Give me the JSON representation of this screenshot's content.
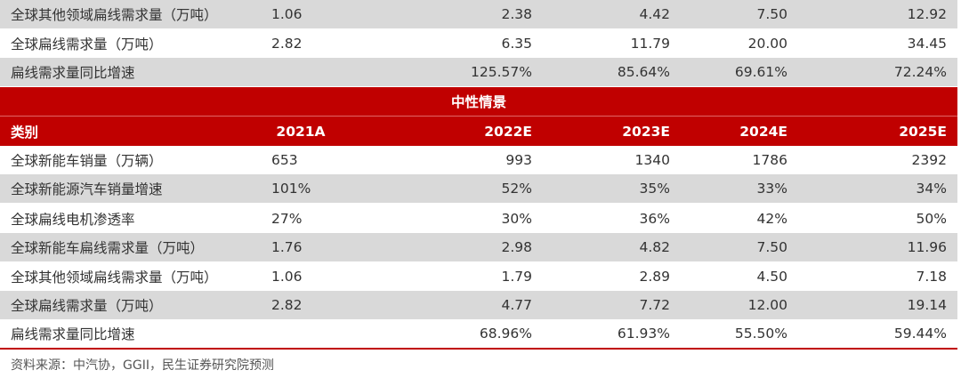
{
  "top_rows": [
    {
      "label": "全球其他领域扁线需求量（万吨）",
      "v2021": "1.06",
      "v2022": "2.38",
      "v2023": "4.42",
      "v2024": "7.50",
      "v2025": "12.92"
    },
    {
      "label": "全球扁线需求量（万吨）",
      "v2021": "2.82",
      "v2022": "6.35",
      "v2023": "11.79",
      "v2024": "20.00",
      "v2025": "34.45"
    },
    {
      "label": "扁线需求量同比增速",
      "v2021": "",
      "v2022": "125.57%",
      "v2023": "85.64%",
      "v2024": "69.61%",
      "v2025": "72.24%"
    }
  ],
  "scenario_title": "中性情景",
  "header": {
    "category": "类别",
    "y2021": "2021A",
    "y2022": "2022E",
    "y2023": "2023E",
    "y2024": "2024E",
    "y2025": "2025E"
  },
  "rows": [
    {
      "label": "全球新能车销量（万辆）",
      "v2021": "653",
      "v2022": "993",
      "v2023": "1340",
      "v2024": "1786",
      "v2025": "2392"
    },
    {
      "label": "全球新能源汽车销量增速",
      "v2021": "101%",
      "v2022": "52%",
      "v2023": "35%",
      "v2024": "33%",
      "v2025": "34%"
    },
    {
      "label": "全球扁线电机渗透率",
      "v2021": "27%",
      "v2022": "30%",
      "v2023": "36%",
      "v2024": "42%",
      "v2025": "50%"
    },
    {
      "label": "全球新能车扁线需求量（万吨）",
      "v2021": "1.76",
      "v2022": "2.98",
      "v2023": "4.82",
      "v2024": "7.50",
      "v2025": "11.96"
    },
    {
      "label": "全球其他领域扁线需求量（万吨）",
      "v2021": "1.06",
      "v2022": "1.79",
      "v2023": "2.89",
      "v2024": "4.50",
      "v2025": "7.18"
    },
    {
      "label": "全球扁线需求量（万吨）",
      "v2021": "2.82",
      "v2022": "4.77",
      "v2023": "7.72",
      "v2024": "12.00",
      "v2025": "19.14"
    },
    {
      "label": "扁线需求量同比增速",
      "v2021": "",
      "v2022": "68.96%",
      "v2023": "61.93%",
      "v2024": "55.50%",
      "v2025": "59.44%"
    }
  ],
  "source": "资料来源：中汽协，GGII，民生证券研究院预测",
  "colors": {
    "accent": "#c00000",
    "row_gray": "#d9d9d9"
  }
}
